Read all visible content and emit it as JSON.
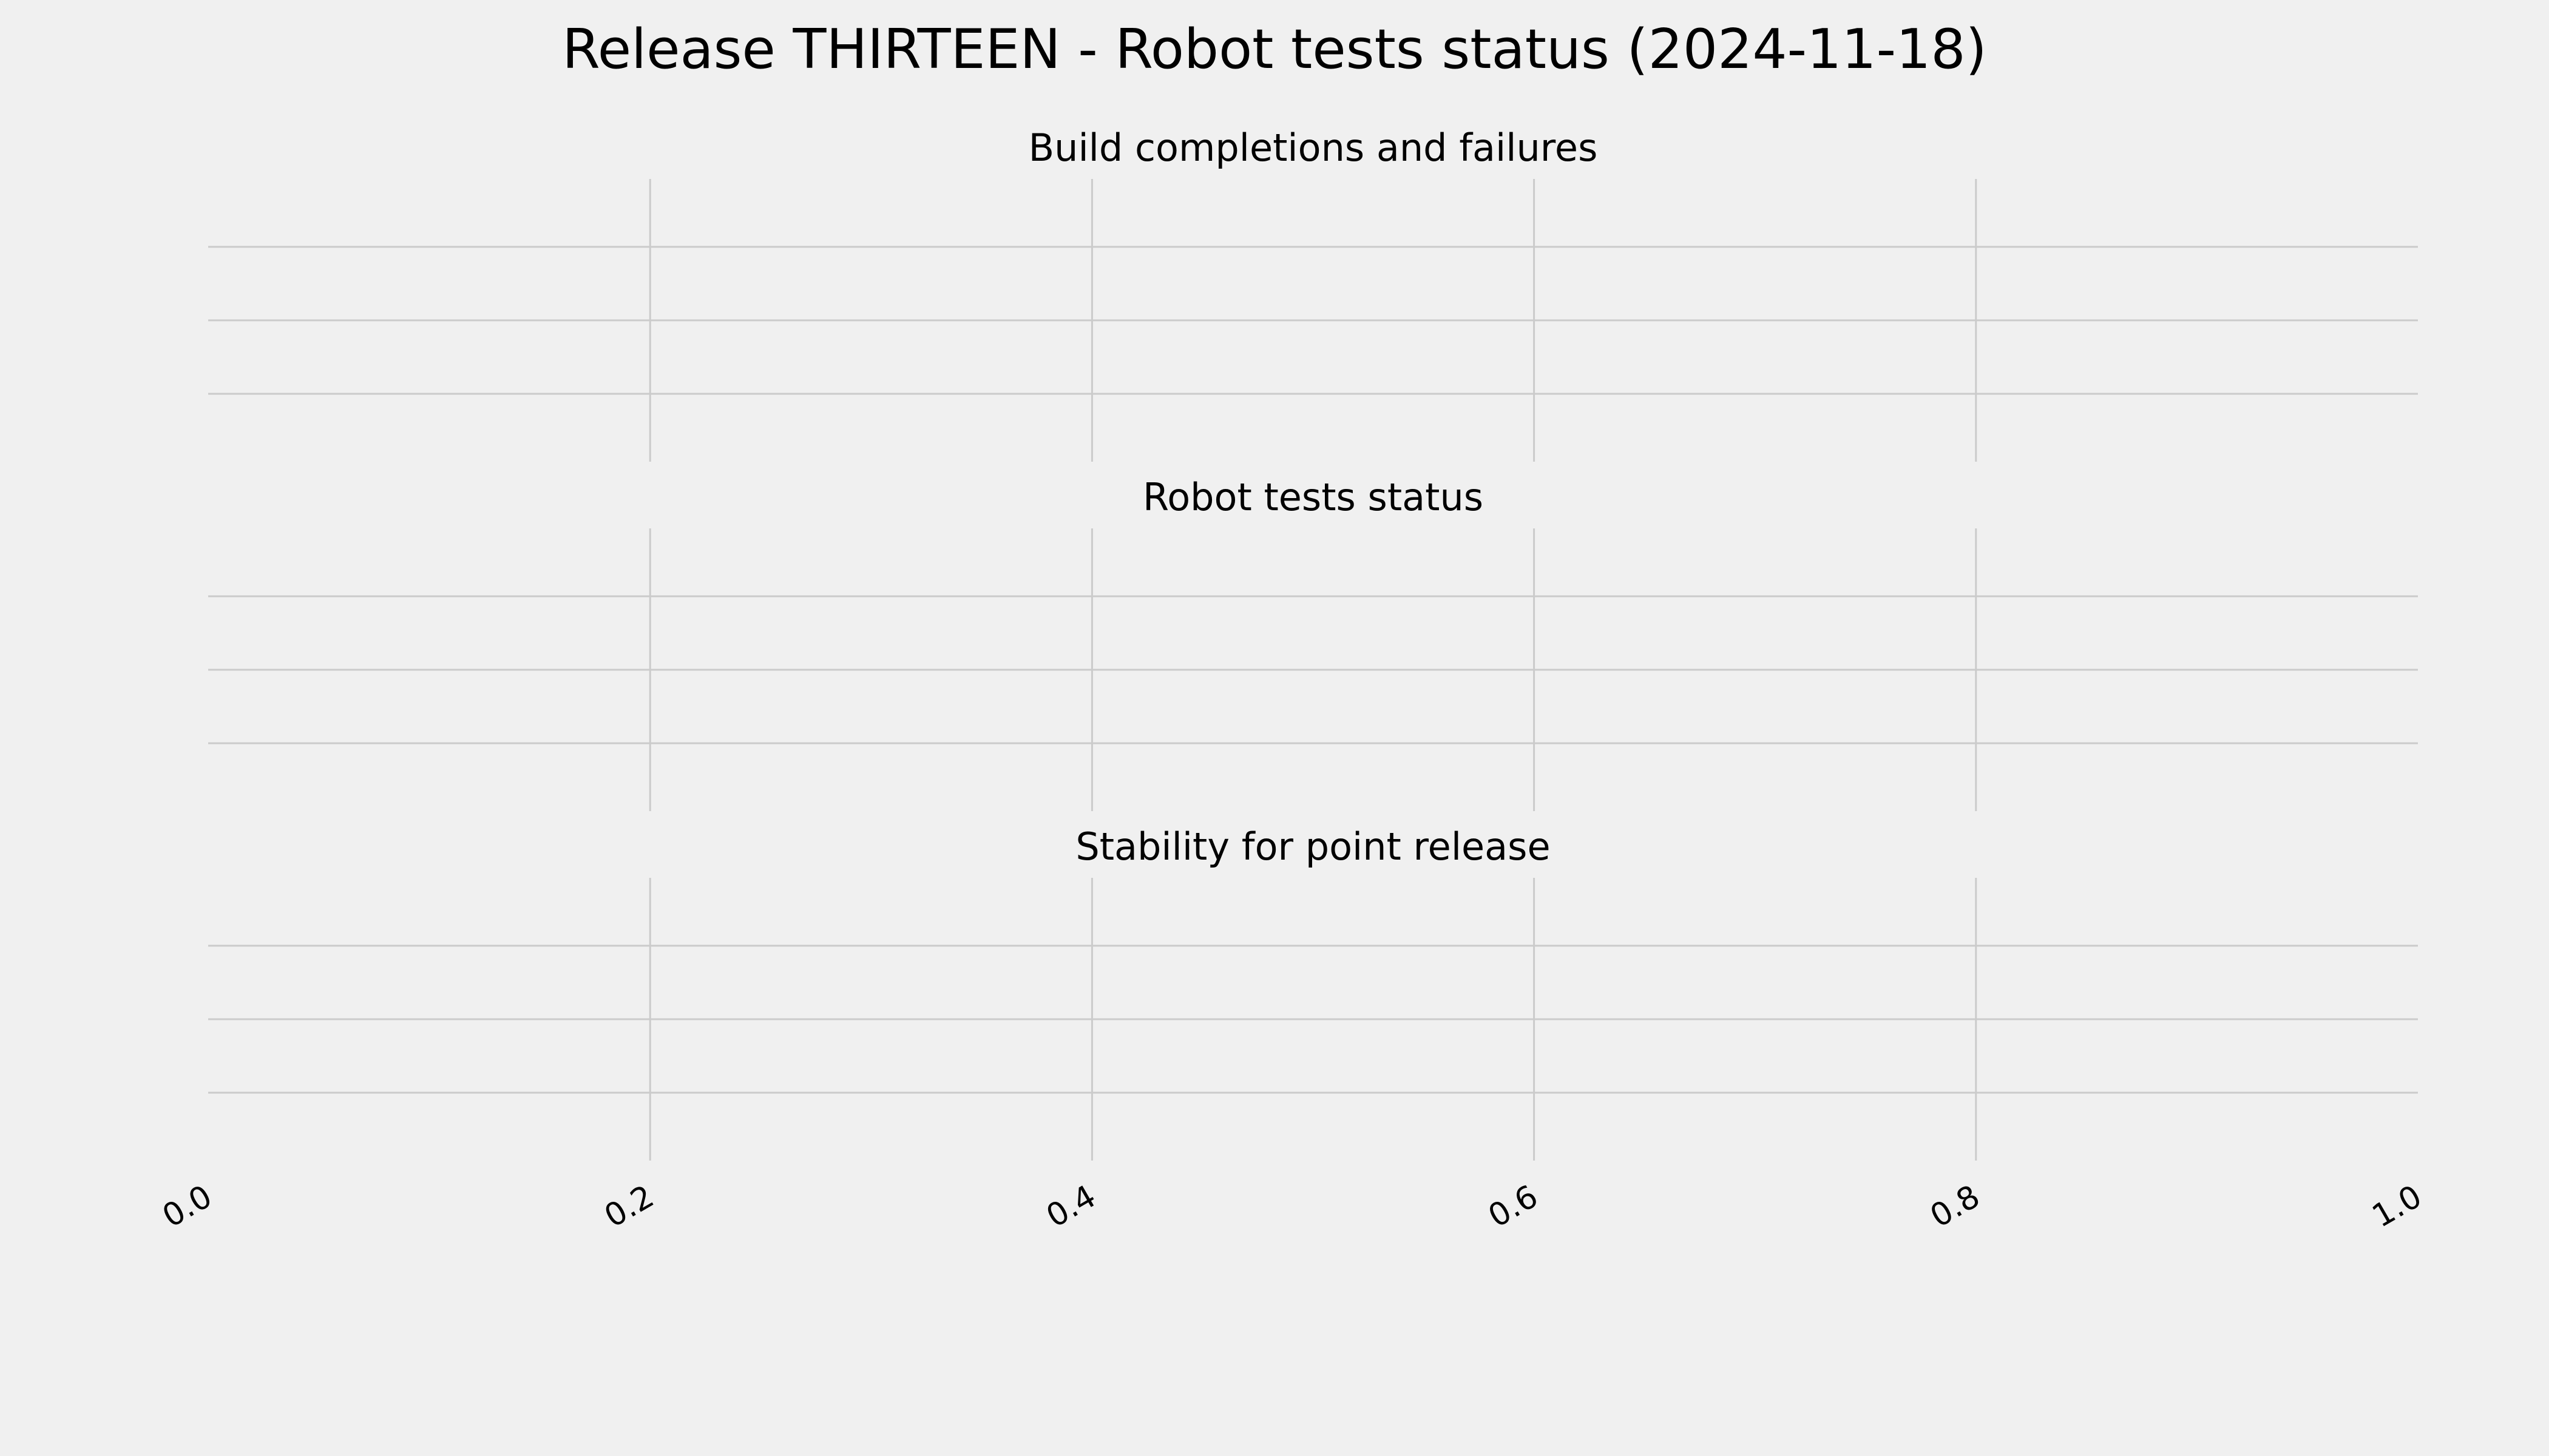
{
  "chart_data": [
    {
      "type": "line",
      "title": "Build completions and failures",
      "x": [],
      "series": [],
      "xlim": [
        0.0,
        1.0
      ],
      "grid": true,
      "x_tick_labels_shown": false
    },
    {
      "type": "line",
      "title": "Robot tests status",
      "x": [],
      "series": [],
      "xlim": [
        0.0,
        1.0
      ],
      "grid": true,
      "x_tick_labels_shown": false
    },
    {
      "type": "line",
      "title": "Stability for point release",
      "x": [],
      "series": [],
      "xlim": [
        0.0,
        1.0
      ],
      "grid": true,
      "x_tick_labels_shown": true
    }
  ],
  "figure": {
    "suptitle": "Release THIRTEEN - Robot tests status (2024-11-18)",
    "x_ticks": [
      0.0,
      0.2,
      0.4,
      0.6,
      0.8,
      1.0
    ],
    "x_tick_labels": [
      "0.0",
      "0.2",
      "0.4",
      "0.6",
      "0.8",
      "1.0"
    ],
    "colors": {
      "background": "#f0f0f0",
      "grid": "#cbcbcb",
      "text": "#000000"
    }
  }
}
